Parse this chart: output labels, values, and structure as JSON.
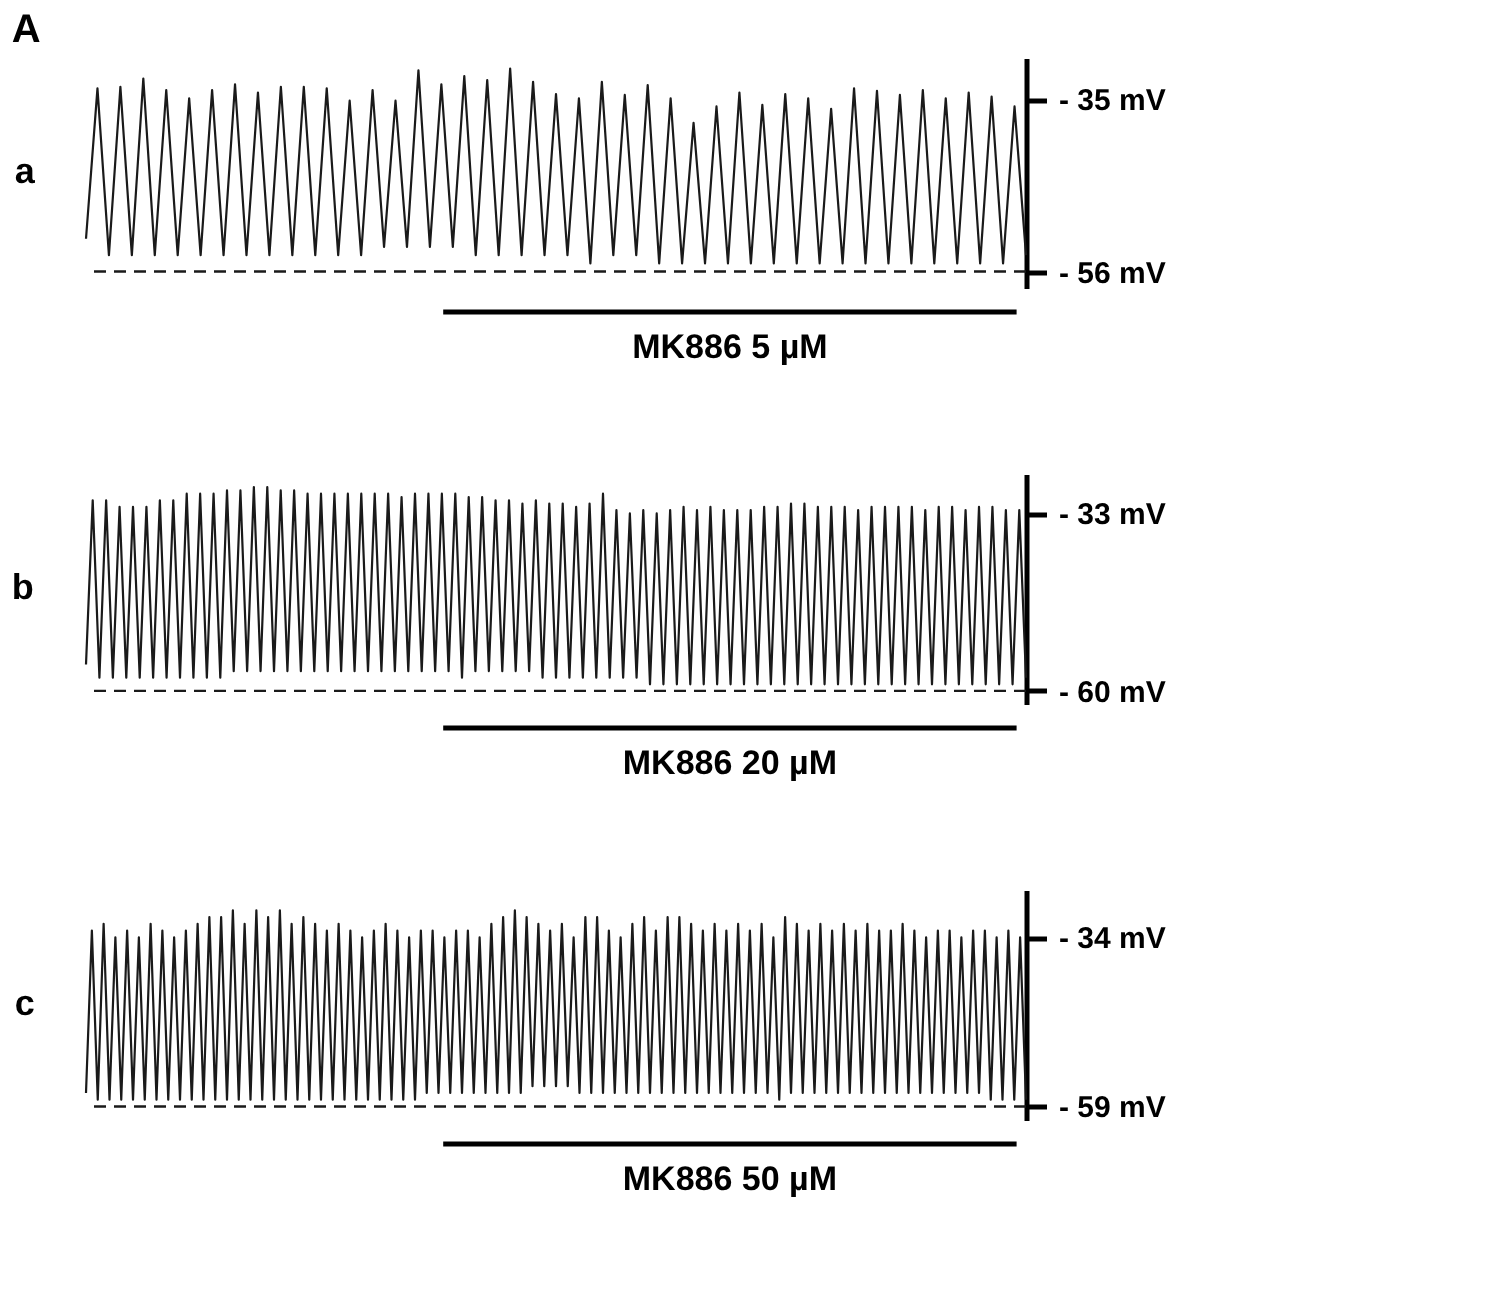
{
  "chart_data": [
    {
      "type": "line",
      "title": "a",
      "subtitle": "A",
      "tick_labels": "y",
      "grid": false,
      "legend": false,
      "marker": "none",
      "line_style": "solid",
      "categories": [
        null,
        null,
        null,
        null,
        null,
        null,
        null,
        null,
        null,
        null,
        null,
        null,
        null,
        null,
        null,
        null,
        null,
        null,
        null,
        null,
        null,
        null,
        null,
        null,
        null,
        null,
        null,
        null,
        null,
        null,
        null,
        null,
        null,
        null,
        null,
        null,
        null,
        null,
        null,
        null,
        null,
        null,
        null,
        null,
        null,
        null,
        null,
        null,
        null,
        null,
        null,
        null,
        null,
        null,
        null,
        null,
        null,
        null,
        null,
        null,
        null,
        null,
        null,
        null,
        null,
        null,
        null,
        null,
        null,
        null,
        null,
        null,
        null,
        null,
        null,
        null,
        null,
        null,
        null,
        null,
        null,
        null,
        null
      ],
      "series": [
        {
          "color": "#1a1a1a",
          "values": [
            -52,
            -33.7,
            -54,
            -33.5,
            -54,
            -32.5,
            -54,
            -33.9,
            -54,
            -34.9,
            -54,
            -33.9,
            -54,
            -33.2,
            -54,
            -34.2,
            -54,
            -33.5,
            -54,
            -33.5,
            -54,
            -33.7,
            -54,
            -35.2,
            -54,
            -33.9,
            -53,
            -35.2,
            -53,
            -31.5,
            -53,
            -33.2,
            -53,
            -32.2,
            -54,
            -32.7,
            -54,
            -31.3,
            -54,
            -32.9,
            -54,
            -34.4,
            -54,
            -34.9,
            -55,
            -32.9,
            -54,
            -34.5,
            -54,
            -33.3,
            -55,
            -34.9,
            -55,
            -37.9,
            -55,
            -35.9,
            -55,
            -34.2,
            -55,
            -35.7,
            -55,
            -34.4,
            -55,
            -34.9,
            -55,
            -36.2,
            -55,
            -33.7,
            -55,
            -34,
            -55,
            -34.5,
            -55,
            -33.9,
            -55,
            -34.9,
            -55,
            -34.2,
            -55,
            -34.7,
            -55,
            -35.9,
            -54
          ]
        }
      ],
      "ylim": [
        -58,
        -30
      ],
      "yticks": [
        {
          "value": -35,
          "label": "- 35 mV"
        },
        {
          "value": -56,
          "label": "- 56 mV"
        }
      ],
      "ref_lines": [
        {
          "axis": "y",
          "value": -56,
          "line_style": "dashed",
          "color": "#1a1a1a"
        }
      ],
      "annotations": [
        "MK886 5 µM"
      ]
    },
    {
      "type": "line",
      "title": "b",
      "tick_labels": "y",
      "grid": false,
      "legend": false,
      "marker": "none",
      "line_style": "solid",
      "categories": [
        null,
        null,
        null,
        null,
        null,
        null,
        null,
        null,
        null,
        null,
        null,
        null,
        null,
        null,
        null,
        null,
        null,
        null,
        null,
        null,
        null,
        null,
        null,
        null,
        null,
        null,
        null,
        null,
        null,
        null,
        null,
        null,
        null,
        null,
        null,
        null,
        null,
        null,
        null,
        null,
        null,
        null,
        null,
        null,
        null,
        null,
        null,
        null,
        null,
        null,
        null,
        null,
        null,
        null,
        null,
        null,
        null,
        null,
        null,
        null,
        null,
        null,
        null,
        null,
        null,
        null,
        null,
        null,
        null,
        null,
        null,
        null,
        null,
        null,
        null,
        null,
        null,
        null,
        null,
        null,
        null,
        null,
        null,
        null,
        null,
        null,
        null,
        null,
        null,
        null,
        null,
        null,
        null,
        null,
        null,
        null,
        null,
        null,
        null,
        null,
        null,
        null,
        null,
        null,
        null,
        null,
        null,
        null,
        null,
        null,
        null,
        null,
        null,
        null,
        null,
        null,
        null,
        null,
        null,
        null,
        null,
        null,
        null,
        null,
        null,
        null,
        null,
        null,
        null,
        null,
        null,
        null,
        null,
        null,
        null,
        null,
        null,
        null,
        null,
        null,
        null
      ],
      "series": [
        {
          "color": "#1a1a1a",
          "values": [
            -56,
            -31,
            -58,
            -31,
            -58,
            -32,
            -58,
            -32,
            -58,
            -32,
            -58,
            -31,
            -58,
            -31,
            -58,
            -30,
            -58,
            -30,
            -58,
            -30,
            -58,
            -29.5,
            -57,
            -29.5,
            -57,
            -29,
            -57,
            -29,
            -57,
            -29.5,
            -57,
            -29.5,
            -57,
            -30,
            -57,
            -30,
            -57,
            -30,
            -57,
            -30,
            -57,
            -30,
            -57,
            -30,
            -57,
            -30,
            -57,
            -30.5,
            -57,
            -30,
            -57,
            -30,
            -57,
            -30,
            -57,
            -30,
            -58,
            -30.5,
            -57,
            -30.5,
            -57,
            -31,
            -57,
            -31,
            -57,
            -31.5,
            -57,
            -31,
            -58,
            -31.5,
            -58,
            -31.5,
            -58,
            -32,
            -58,
            -31.5,
            -58,
            -30,
            -58,
            -32.5,
            -58,
            -33,
            -58,
            -32.5,
            -59,
            -33,
            -59,
            -32.5,
            -59,
            -32,
            -59,
            -32.5,
            -59,
            -32,
            -59,
            -32.5,
            -59,
            -32.5,
            -59,
            -32.5,
            -59,
            -32,
            -59,
            -32,
            -59,
            -31.5,
            -59,
            -31.5,
            -59,
            -32,
            -59,
            -32,
            -59,
            -32,
            -59,
            -32.5,
            -59,
            -32,
            -59,
            -32,
            -59,
            -32,
            -59,
            -32,
            -59,
            -32.5,
            -59,
            -32,
            -59,
            -32,
            -59,
            -32.5,
            -59,
            -32,
            -59,
            -32,
            -59,
            -32.5,
            -59,
            -32.5,
            -58
          ]
        }
      ],
      "ylim": [
        -62,
        -27
      ],
      "yticks": [
        {
          "value": -33,
          "label": "- 33 mV"
        },
        {
          "value": -60,
          "label": "- 60 mV"
        }
      ],
      "ref_lines": [
        {
          "axis": "y",
          "value": -60,
          "line_style": "dashed",
          "color": "#1a1a1a"
        }
      ],
      "annotations": [
        "MK886 20 µM"
      ]
    },
    {
      "type": "line",
      "title": "c",
      "tick_labels": "y",
      "grid": false,
      "legend": false,
      "marker": "none",
      "line_style": "solid",
      "categories": [
        null,
        null,
        null,
        null,
        null,
        null,
        null,
        null,
        null,
        null,
        null,
        null,
        null,
        null,
        null,
        null,
        null,
        null,
        null,
        null,
        null,
        null,
        null,
        null,
        null,
        null,
        null,
        null,
        null,
        null,
        null,
        null,
        null,
        null,
        null,
        null,
        null,
        null,
        null,
        null,
        null,
        null,
        null,
        null,
        null,
        null,
        null,
        null,
        null,
        null,
        null,
        null,
        null,
        null,
        null,
        null,
        null,
        null,
        null,
        null,
        null,
        null,
        null,
        null,
        null,
        null,
        null,
        null,
        null,
        null,
        null,
        null,
        null,
        null,
        null,
        null,
        null,
        null,
        null,
        null,
        null,
        null,
        null,
        null,
        null,
        null,
        null,
        null,
        null,
        null,
        null,
        null,
        null,
        null,
        null,
        null,
        null,
        null,
        null,
        null,
        null,
        null,
        null,
        null,
        null,
        null,
        null,
        null,
        null,
        null,
        null,
        null,
        null,
        null,
        null,
        null,
        null,
        null,
        null,
        null,
        null,
        null,
        null,
        null,
        null,
        null,
        null,
        null,
        null,
        null,
        null,
        null,
        null,
        null,
        null,
        null,
        null,
        null,
        null,
        null,
        null,
        null,
        null,
        null,
        null,
        null,
        null,
        null,
        null,
        null,
        null,
        null,
        null,
        null,
        null,
        null,
        null,
        null,
        null,
        null,
        null
      ],
      "series": [
        {
          "color": "#1a1a1a",
          "values": [
            -57,
            -33,
            -58,
            -32,
            -58,
            -34,
            -58,
            -33,
            -58,
            -34,
            -58,
            -32,
            -58,
            -33,
            -58,
            -34,
            -58,
            -33,
            -58,
            -32,
            -58,
            -31,
            -58,
            -31,
            -58,
            -30,
            -58,
            -32,
            -58,
            -30,
            -58,
            -31,
            -58,
            -30,
            -58,
            -32,
            -58,
            -31,
            -58,
            -32,
            -58,
            -33,
            -58,
            -32,
            -58,
            -33,
            -58,
            -34,
            -58,
            -33,
            -58,
            -32,
            -58,
            -33,
            -58,
            -34,
            -58,
            -33,
            -57,
            -33,
            -57,
            -34,
            -57,
            -33,
            -57,
            -33,
            -57,
            -34,
            -57,
            -32,
            -57,
            -31,
            -57,
            -30,
            -57,
            -31,
            -56,
            -32,
            -56,
            -33,
            -56,
            -32,
            -56,
            -34,
            -57,
            -31,
            -57,
            -31,
            -57,
            -33,
            -57,
            -34,
            -57,
            -32,
            -57,
            -31,
            -57,
            -33,
            -57,
            -31,
            -57,
            -31,
            -57,
            -32,
            -57,
            -33,
            -57,
            -32,
            -57,
            -33,
            -57,
            -32,
            -57,
            -33,
            -57,
            -32,
            -57,
            -34,
            -58,
            -31,
            -57,
            -32,
            -57,
            -33,
            -57,
            -32,
            -57,
            -33,
            -57,
            -32,
            -57,
            -33,
            -57,
            -32,
            -57,
            -33,
            -57,
            -33,
            -57,
            -32,
            -57,
            -33,
            -57,
            -34,
            -57,
            -33,
            -57,
            -33,
            -57,
            -34,
            -57,
            -33,
            -57,
            -33,
            -58,
            -34,
            -58,
            -33,
            -58,
            -34,
            -58
          ]
        }
      ],
      "ylim": [
        -61,
        -27
      ],
      "yticks": [
        {
          "value": -34,
          "label": "- 34 mV"
        },
        {
          "value": -59,
          "label": "- 59 mV"
        }
      ],
      "ref_lines": [
        {
          "axis": "y",
          "value": -59,
          "line_style": "dashed",
          "color": "#1a1a1a"
        }
      ],
      "annotations": [
        "MK886 50 µM"
      ]
    }
  ]
}
